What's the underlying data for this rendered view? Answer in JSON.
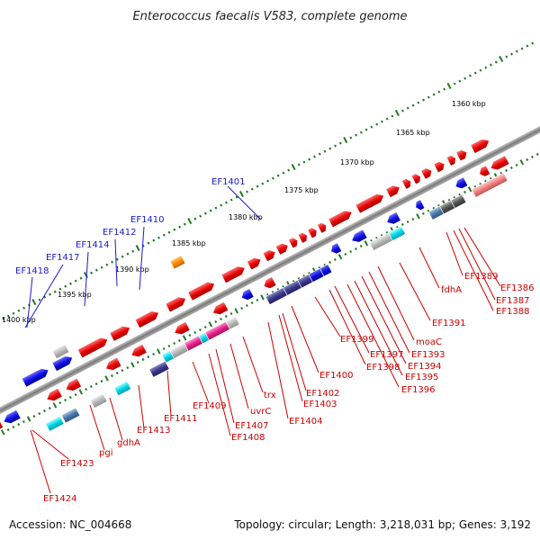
{
  "title": "Enterococcus faecalis V583, complete genome",
  "footer": {
    "accession": "Accession: NC_004668",
    "summary": "Topology: circular; Length: 3,218,031 bp; Genes: 3,192"
  },
  "ticks": [
    "1360 kbp",
    "1365 kbp",
    "1370 kbp",
    "1375 kbp",
    "1380 kbp",
    "1385 kbp",
    "1390 kbp",
    "1395 kbp",
    "1400 kbp"
  ],
  "labels_blue": [
    "EF1401",
    "EF1410",
    "EF1412",
    "EF1414",
    "EF1417",
    "EF1418"
  ],
  "labels_red": [
    "EF1386",
    "EF1387",
    "EF1388",
    "EF1389",
    "fdhA",
    "EF1391",
    "moaC",
    "EF1393",
    "EF1394",
    "EF1395",
    "EF1396",
    "EF1397",
    "EF1398",
    "EF1399",
    "EF1400",
    "EF1402",
    "EF1403",
    "EF1404",
    "trx",
    "uvrC",
    "EF1407",
    "EF1408",
    "EF1409",
    "EF1411",
    "EF1413",
    "gdhA",
    "pgi",
    "EF1423",
    "EF1424"
  ],
  "colors": {
    "forward_gene": "#ee1111",
    "reverse_gene": "#1111dd",
    "backbone": "#888888",
    "tick": "#227722",
    "label_red": "#cc0000",
    "label_blue": "#1a1acc"
  }
}
